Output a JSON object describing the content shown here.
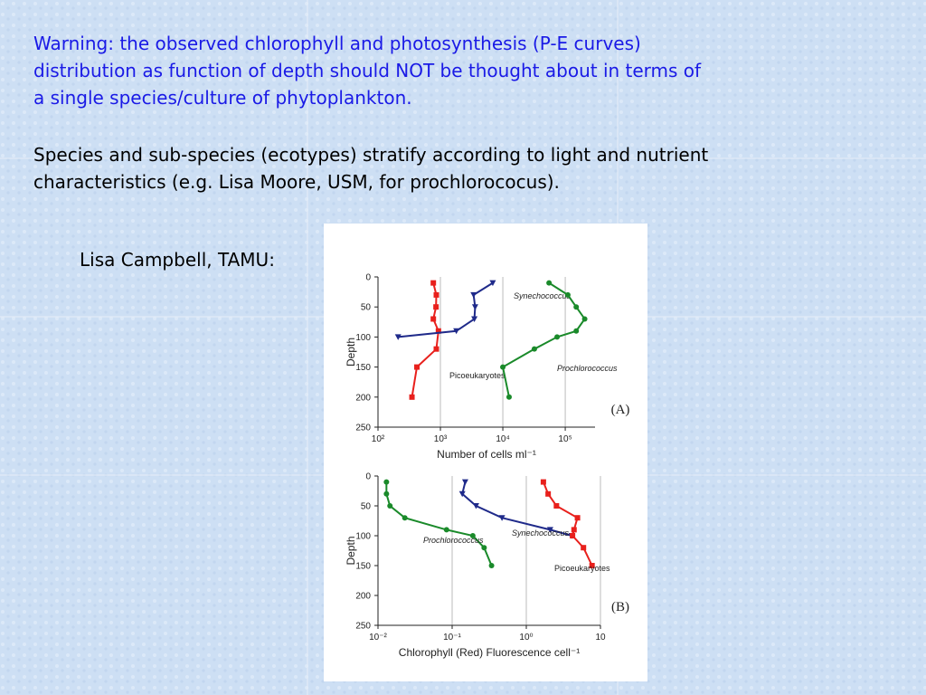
{
  "slide": {
    "warning": [
      "Warning: the observed chlorophyll and photosynthesis (P-E curves)",
      "distribution as function of depth should NOT be thought about in terms of",
      "a single species/culture of phytoplankton."
    ],
    "species": [
      "Species and sub-species (ecotypes) stratify according to light and nutrient",
      "characteristics (e.g. Lisa Moore, USM, for prochlorococus)."
    ],
    "credit": "Lisa Campbell, TAMU:"
  },
  "chart_data": [
    {
      "type": "line",
      "panel_label": "(A)",
      "x_label": "Number of cells ml⁻¹",
      "y_label": "Depth",
      "x_scale": "log",
      "y_inverted": true,
      "grid": true,
      "xlim": [
        100,
        300000
      ],
      "ylim": [
        0,
        250
      ],
      "xticks": [
        {
          "value": 100,
          "label": "10²"
        },
        {
          "value": 1000,
          "label": "10³"
        },
        {
          "value": 10000,
          "label": "10⁴"
        },
        {
          "value": 100000,
          "label": "10⁵"
        }
      ],
      "yticks": [
        0,
        50,
        100,
        150,
        200,
        250
      ],
      "series": [
        {
          "name": "Picoeukaryotes",
          "color": "#e8201c",
          "marker": "square",
          "x": [
            770,
            860,
            850,
            770,
            930,
            860,
            420,
            350
          ],
          "values": [
            10,
            30,
            50,
            70,
            90,
            120,
            150,
            200
          ]
        },
        {
          "name": "Synechococcus",
          "color": "#1f2a8a",
          "marker": "triangle",
          "x": [
            6900,
            3400,
            3600,
            3500,
            1800,
            210
          ],
          "values": [
            10,
            30,
            50,
            70,
            90,
            100
          ]
        },
        {
          "name": "Prochlorococcus",
          "color": "#1a8a2a",
          "marker": "circle",
          "x": [
            55000,
            110000,
            150000,
            205000,
            150000,
            74000,
            32000,
            10000,
            12600
          ],
          "values": [
            10,
            30,
            50,
            70,
            90,
            100,
            120,
            150,
            200
          ]
        }
      ]
    },
    {
      "type": "line",
      "panel_label": "(B)",
      "x_label": "Chlorophyll (Red) Fluorescence cell⁻¹",
      "y_label": "Depth",
      "x_scale": "log",
      "y_inverted": true,
      "grid": true,
      "xlim": [
        0.01,
        10
      ],
      "ylim": [
        0,
        250
      ],
      "xticks": [
        {
          "value": 0.01,
          "label": "10⁻²"
        },
        {
          "value": 0.1,
          "label": "10⁻¹"
        },
        {
          "value": 1,
          "label": "10⁰"
        },
        10
      ],
      "yticks": [
        0,
        50,
        100,
        150,
        200,
        250
      ],
      "series": [
        {
          "name": "Prochlorococcus",
          "color": "#1a8a2a",
          "marker": "circle",
          "x": [
            0.013,
            0.013,
            0.0145,
            0.023,
            0.084,
            0.19,
            0.27,
            0.34
          ],
          "values": [
            10,
            30,
            50,
            70,
            90,
            100,
            120,
            150
          ]
        },
        {
          "name": "Synechococcus",
          "color": "#1f2a8a",
          "marker": "triangle",
          "x": [
            0.15,
            0.137,
            0.21,
            0.47,
            2.1,
            4.1
          ],
          "values": [
            10,
            30,
            50,
            70,
            90,
            100
          ]
        },
        {
          "name": "Picoeukaryotes",
          "color": "#e8201c",
          "marker": "square",
          "x": [
            1.7,
            1.97,
            2.55,
            4.9,
            4.4,
            4.2,
            5.9,
            7.7
          ],
          "values": [
            10,
            30,
            50,
            70,
            90,
            100,
            120,
            150
          ]
        }
      ]
    }
  ]
}
